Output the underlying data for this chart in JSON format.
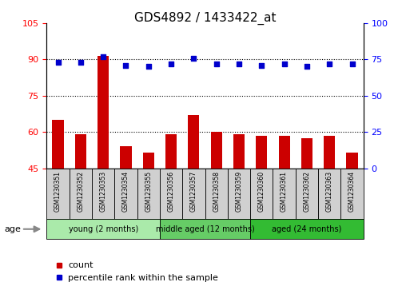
{
  "title": "GDS4892 / 1433422_at",
  "samples": [
    "GSM1230351",
    "GSM1230352",
    "GSM1230353",
    "GSM1230354",
    "GSM1230355",
    "GSM1230356",
    "GSM1230357",
    "GSM1230358",
    "GSM1230359",
    "GSM1230360",
    "GSM1230361",
    "GSM1230362",
    "GSM1230363",
    "GSM1230364"
  ],
  "count_values": [
    65.0,
    59.0,
    91.5,
    54.0,
    51.5,
    59.0,
    67.0,
    60.0,
    59.0,
    58.5,
    58.5,
    57.5,
    58.5,
    51.5
  ],
  "percentile_values": [
    73,
    73,
    77,
    71,
    70,
    72,
    76,
    72,
    72,
    71,
    72,
    70,
    72,
    72
  ],
  "ylim_left": [
    45,
    105
  ],
  "ylim_right": [
    0,
    100
  ],
  "yticks_left": [
    45,
    60,
    75,
    90,
    105
  ],
  "yticks_right": [
    0,
    25,
    50,
    75,
    100
  ],
  "group_labels": [
    "young (2 months)",
    "middle aged (12 months)",
    "aged (24 months)"
  ],
  "group_colors": [
    "#aaeaaa",
    "#66cc66",
    "#33bb33"
  ],
  "group_starts": [
    0,
    5,
    9
  ],
  "group_ends": [
    5,
    9,
    14
  ],
  "age_label": "age",
  "bar_color": "#cc0000",
  "dot_color": "#0000cc",
  "legend_count_label": "count",
  "legend_percentile_label": "percentile rank within the sample",
  "sample_bg_color": "#d0d0d0",
  "plot_bg_color": "#ffffff",
  "grid_yticks": [
    60,
    75,
    90
  ]
}
